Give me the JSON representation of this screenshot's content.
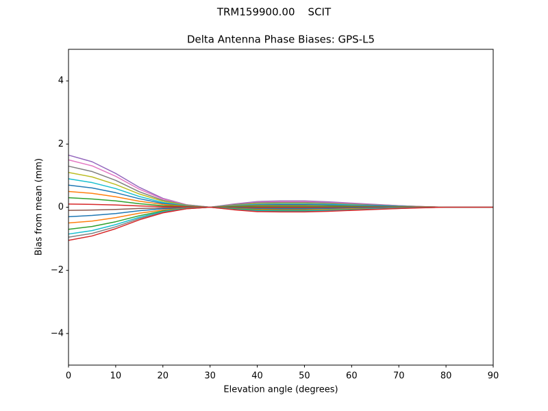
{
  "chart_data": {
    "type": "line",
    "suptitle": "TRM159900.00    SCIT",
    "title": "Delta Antenna Phase Biases: GPS-L5",
    "x_label": "Elevation angle (degrees)",
    "y_label": "Bias from mean (mm)",
    "x": [
      0,
      5,
      10,
      15,
      20,
      25,
      30,
      35,
      40,
      45,
      50,
      55,
      60,
      65,
      70,
      75,
      80,
      85,
      90
    ],
    "xlim": [
      0,
      90
    ],
    "xticks": [
      0,
      10,
      20,
      30,
      40,
      50,
      60,
      70,
      80,
      90
    ],
    "ylim": [
      -5,
      5
    ],
    "yticks": [
      {
        "value": -4,
        "label": "−4"
      },
      {
        "value": -2,
        "label": "−2"
      },
      0,
      2,
      4
    ],
    "grid": false,
    "series": [
      {
        "color": "#9467bd",
        "values": [
          1.65,
          1.44,
          1.07,
          0.63,
          0.28,
          0.08,
          0,
          0.1,
          0.18,
          0.2,
          0.2,
          0.17,
          0.13,
          0.09,
          0.05,
          0.02,
          0,
          0,
          0
        ]
      },
      {
        "color": "#e377c2",
        "values": [
          1.5,
          1.31,
          0.98,
          0.57,
          0.26,
          0.08,
          0,
          0.09,
          0.16,
          0.18,
          0.18,
          0.15,
          0.12,
          0.08,
          0.05,
          0.02,
          0,
          0,
          0
        ]
      },
      {
        "color": "#7f7f7f",
        "values": [
          1.3,
          1.13,
          0.85,
          0.49,
          0.22,
          0.07,
          0,
          0.08,
          0.14,
          0.15,
          0.15,
          0.13,
          0.1,
          0.07,
          0.04,
          0.02,
          0,
          0,
          0
        ]
      },
      {
        "color": "#bcbd22",
        "values": [
          1.1,
          0.96,
          0.72,
          0.42,
          0.19,
          0.06,
          0,
          0.06,
          0.11,
          0.12,
          0.12,
          0.1,
          0.08,
          0.05,
          0.03,
          0.01,
          0,
          0,
          0
        ]
      },
      {
        "color": "#17becf",
        "values": [
          0.9,
          0.78,
          0.59,
          0.34,
          0.15,
          0.05,
          0,
          0.05,
          0.09,
          0.1,
          0.1,
          0.09,
          0.07,
          0.05,
          0.03,
          0.01,
          0,
          0,
          0
        ]
      },
      {
        "color": "#1f77b4",
        "values": [
          0.7,
          0.61,
          0.46,
          0.27,
          0.12,
          0.04,
          0,
          0.04,
          0.07,
          0.08,
          0.08,
          0.07,
          0.05,
          0.04,
          0.02,
          0.01,
          0,
          0,
          0
        ]
      },
      {
        "color": "#ff7f0e",
        "values": [
          0.5,
          0.44,
          0.33,
          0.19,
          0.09,
          0.03,
          0,
          0.03,
          0.05,
          0.05,
          0.05,
          0.04,
          0.03,
          0.02,
          0.01,
          0.01,
          0,
          0,
          0
        ]
      },
      {
        "color": "#2ca02c",
        "values": [
          0.3,
          0.26,
          0.2,
          0.11,
          0.05,
          0.02,
          0,
          0.02,
          0.03,
          0.03,
          0.03,
          0.03,
          0.02,
          0.01,
          0.01,
          0,
          0,
          0,
          0
        ]
      },
      {
        "color": "#d62728",
        "values": [
          0.1,
          0.09,
          0.07,
          0.04,
          0.02,
          0.01,
          0,
          0,
          0,
          0,
          0,
          0,
          0,
          0,
          0,
          0,
          0,
          0,
          0
        ]
      },
      {
        "color": "#8c564b",
        "values": [
          -0.1,
          -0.09,
          -0.07,
          -0.04,
          -0.02,
          -0.01,
          0,
          -0.01,
          -0.02,
          -0.02,
          -0.02,
          -0.02,
          -0.01,
          -0.01,
          -0.01,
          0,
          0,
          0,
          0
        ]
      },
      {
        "color": "#1f77b4",
        "values": [
          -0.3,
          -0.26,
          -0.2,
          -0.11,
          -0.05,
          -0.02,
          0,
          -0.03,
          -0.05,
          -0.05,
          -0.05,
          -0.04,
          -0.03,
          -0.02,
          -0.01,
          -0.01,
          0,
          0,
          0
        ]
      },
      {
        "color": "#ff7f0e",
        "values": [
          -0.5,
          -0.44,
          -0.33,
          -0.19,
          -0.09,
          -0.03,
          0,
          -0.04,
          -0.07,
          -0.08,
          -0.08,
          -0.07,
          -0.05,
          -0.04,
          -0.02,
          -0.01,
          0,
          0,
          0
        ]
      },
      {
        "color": "#2ca02c",
        "values": [
          -0.7,
          -0.61,
          -0.46,
          -0.27,
          -0.12,
          -0.04,
          0,
          -0.05,
          -0.09,
          -0.1,
          -0.1,
          -0.09,
          -0.07,
          -0.05,
          -0.03,
          -0.01,
          0,
          0,
          0
        ]
      },
      {
        "color": "#17becf",
        "values": [
          -0.85,
          -0.74,
          -0.55,
          -0.32,
          -0.14,
          -0.04,
          0,
          -0.06,
          -0.11,
          -0.12,
          -0.12,
          -0.1,
          -0.08,
          -0.05,
          -0.03,
          -0.01,
          0,
          0,
          0
        ]
      },
      {
        "color": "#7f7f7f",
        "values": [
          -0.95,
          -0.83,
          -0.62,
          -0.36,
          -0.16,
          -0.05,
          0,
          -0.07,
          -0.13,
          -0.14,
          -0.14,
          -0.12,
          -0.09,
          -0.06,
          -0.04,
          -0.01,
          0,
          0,
          0
        ]
      },
      {
        "color": "#d62728",
        "values": [
          -1.05,
          -0.91,
          -0.68,
          -0.4,
          -0.18,
          -0.05,
          0,
          -0.08,
          -0.14,
          -0.15,
          -0.15,
          -0.13,
          -0.1,
          -0.07,
          -0.04,
          -0.02,
          0,
          0,
          0
        ]
      }
    ]
  }
}
